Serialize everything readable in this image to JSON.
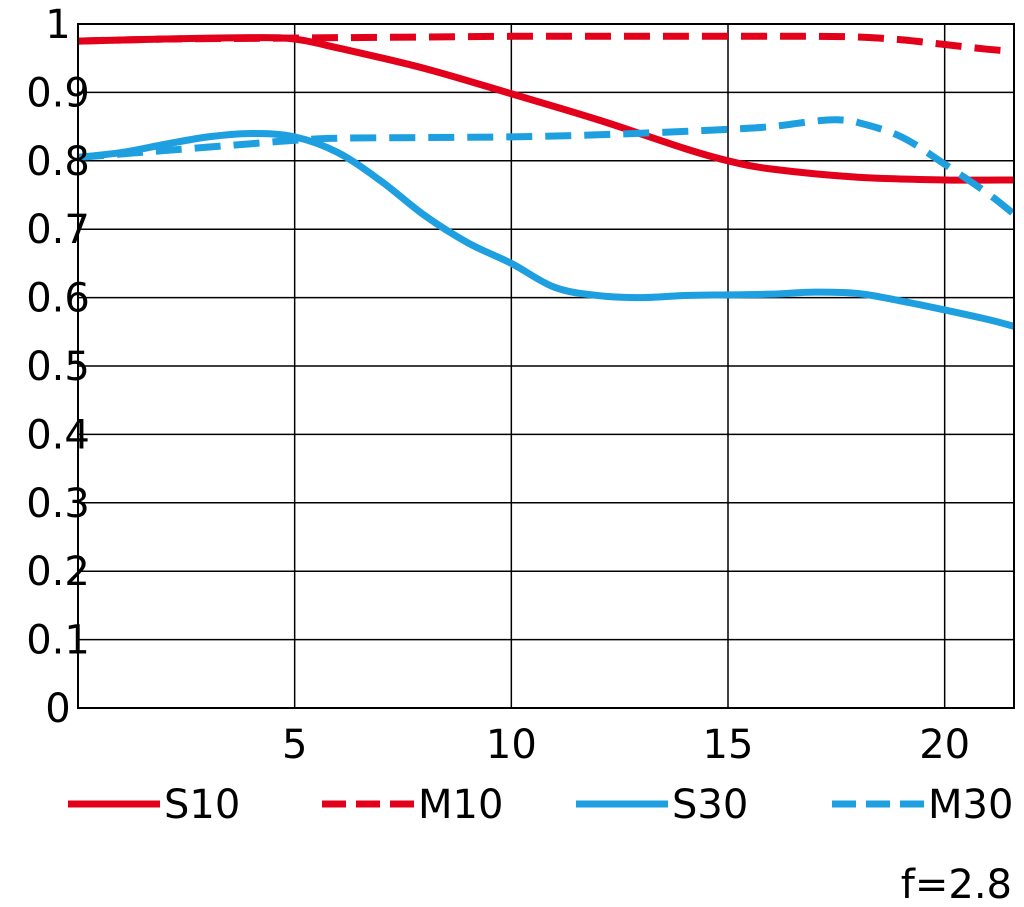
{
  "chart_data": {
    "type": "line",
    "title": "",
    "xlabel": "",
    "ylabel": "",
    "xlim": [
      0,
      21.6
    ],
    "ylim": [
      0,
      1
    ],
    "x_ticks": [
      5,
      10,
      15,
      20
    ],
    "x_tick_labels": [
      "5",
      "10",
      "15",
      "20"
    ],
    "y_ticks": [
      0,
      0.1,
      0.2,
      0.3,
      0.4,
      0.5,
      0.6,
      0.7,
      0.8,
      0.9,
      1
    ],
    "y_tick_labels": [
      "0",
      "0.1",
      "0.2",
      "0.3",
      "0.4",
      "0.5",
      "0.6",
      "0.7",
      "0.8",
      "0.9",
      "1"
    ],
    "grid": true,
    "legend_position": "bottom",
    "series": [
      {
        "name": "S10",
        "color": "#e3001b",
        "dash": "solid",
        "x": [
          0,
          2,
          4,
          5,
          6,
          8,
          10,
          12,
          14,
          15,
          16,
          18,
          20,
          21.6
        ],
        "y": [
          0.975,
          0.978,
          0.98,
          0.978,
          0.965,
          0.935,
          0.898,
          0.86,
          0.818,
          0.8,
          0.788,
          0.776,
          0.772,
          0.772
        ]
      },
      {
        "name": "M10",
        "color": "#e3001b",
        "dash": "dashed",
        "x": [
          0,
          2,
          4,
          6,
          8,
          10,
          12,
          14,
          16,
          17,
          18,
          19,
          20,
          21,
          21.6
        ],
        "y": [
          0.975,
          0.978,
          0.979,
          0.98,
          0.981,
          0.982,
          0.982,
          0.982,
          0.982,
          0.982,
          0.981,
          0.977,
          0.97,
          0.963,
          0.96
        ]
      },
      {
        "name": "S30",
        "color": "#1d9fe0",
        "dash": "solid",
        "x": [
          0,
          1,
          2,
          3,
          4,
          5,
          6,
          7,
          8,
          9,
          10,
          11,
          12,
          13,
          14,
          15,
          16,
          17,
          18,
          19,
          20,
          21,
          21.6
        ],
        "y": [
          0.805,
          0.812,
          0.824,
          0.835,
          0.84,
          0.835,
          0.812,
          0.77,
          0.72,
          0.68,
          0.65,
          0.615,
          0.603,
          0.6,
          0.603,
          0.604,
          0.605,
          0.608,
          0.606,
          0.595,
          0.582,
          0.568,
          0.558
        ]
      },
      {
        "name": "M30",
        "color": "#1d9fe0",
        "dash": "dashed",
        "x": [
          0,
          2,
          4,
          5,
          6,
          8,
          10,
          12,
          14,
          15,
          16,
          17,
          17.5,
          18,
          19,
          20,
          21,
          21.6
        ],
        "y": [
          0.805,
          0.815,
          0.825,
          0.83,
          0.833,
          0.834,
          0.835,
          0.838,
          0.843,
          0.846,
          0.85,
          0.858,
          0.86,
          0.856,
          0.835,
          0.795,
          0.752,
          0.722
        ]
      }
    ],
    "annotation": "f=2.8"
  }
}
